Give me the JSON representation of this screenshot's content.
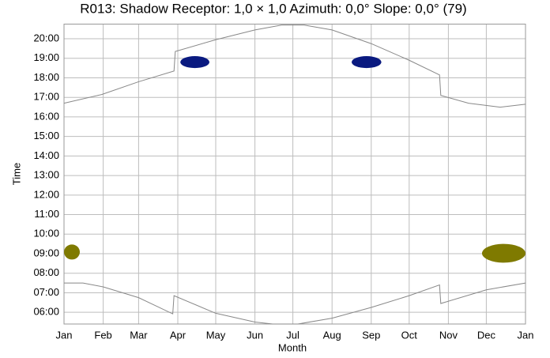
{
  "chart_data": {
    "type": "line",
    "title": "R013: Shadow Receptor: 1,0 × 1,0  Azimuth: 0,0°  Slope: 0,0° (79)",
    "x_label": "Month",
    "y_label": "Time",
    "xlim": [
      0,
      365
    ],
    "xticks": [
      {
        "value": 0,
        "label": "Jan"
      },
      {
        "value": 31,
        "label": "Feb"
      },
      {
        "value": 59,
        "label": "Mar"
      },
      {
        "value": 90,
        "label": "Apr"
      },
      {
        "value": 120,
        "label": "May"
      },
      {
        "value": 151,
        "label": "Jun"
      },
      {
        "value": 181,
        "label": "Jul"
      },
      {
        "value": 212,
        "label": "Aug"
      },
      {
        "value": 243,
        "label": "Sep"
      },
      {
        "value": 273,
        "label": "Oct"
      },
      {
        "value": 304,
        "label": "Nov"
      },
      {
        "value": 334,
        "label": "Dec"
      },
      {
        "value": 365,
        "label": "Jan"
      }
    ],
    "ylim": [
      5.4,
      20.75
    ],
    "yticks": [
      {
        "value": 6,
        "label": "06:00"
      },
      {
        "value": 7,
        "label": "07:00"
      },
      {
        "value": 8,
        "label": "08:00"
      },
      {
        "value": 9,
        "label": "09:00"
      },
      {
        "value": 10,
        "label": "10:00"
      },
      {
        "value": 11,
        "label": "11:00"
      },
      {
        "value": 12,
        "label": "12:00"
      },
      {
        "value": 13,
        "label": "13:00"
      },
      {
        "value": 14,
        "label": "14:00"
      },
      {
        "value": 15,
        "label": "15:00"
      },
      {
        "value": 16,
        "label": "16:00"
      },
      {
        "value": 17,
        "label": "17:00"
      },
      {
        "value": 18,
        "label": "18:00"
      },
      {
        "value": 19,
        "label": "19:00"
      },
      {
        "value": 20,
        "label": "20:00"
      }
    ],
    "grid": true,
    "series": [
      {
        "color": "#888888",
        "x": [
          0,
          30,
          59,
          87,
          88,
          120,
          151,
          172,
          190,
          212,
          243,
          273,
          297,
          298,
          320,
          345,
          365
        ],
        "values": [
          16.7,
          17.15,
          17.8,
          18.35,
          19.35,
          19.95,
          20.45,
          20.7,
          20.7,
          20.45,
          19.75,
          18.9,
          18.15,
          17.1,
          16.7,
          16.5,
          16.65
        ]
      },
      {
        "color": "#888888",
        "x": [
          0,
          15,
          31,
          59,
          86,
          87,
          120,
          151,
          165,
          185,
          212,
          243,
          273,
          297,
          298,
          334,
          365
        ],
        "values": [
          7.5,
          7.5,
          7.3,
          6.75,
          5.92,
          6.85,
          5.95,
          5.5,
          5.4,
          5.4,
          5.7,
          6.25,
          6.85,
          7.4,
          6.45,
          7.15,
          7.5
        ]
      }
    ],
    "shadows": [
      {
        "color": "#0a1a80",
        "x": [
          92,
          115
        ],
        "y": [
          18.5,
          19.11
        ]
      },
      {
        "color": "#0a1a80",
        "x": [
          227.5,
          251
        ],
        "y": [
          18.5,
          19.11
        ]
      },
      {
        "color": "#7f7a00",
        "x": [
          0,
          12.5
        ],
        "y": [
          8.7,
          9.47
        ]
      },
      {
        "color": "#7f7a00",
        "x": [
          330.6,
          365
        ],
        "y": [
          8.54,
          9.5
        ]
      }
    ]
  }
}
